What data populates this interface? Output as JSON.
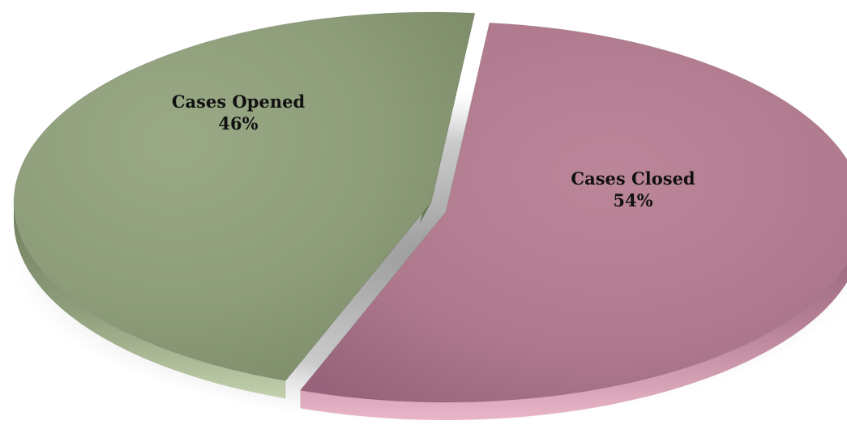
{
  "chart_data": {
    "type": "pie",
    "title": "",
    "categories": [
      "Cases Opened",
      "Cases Closed"
    ],
    "values": [
      46,
      54
    ],
    "labels": [
      {
        "name": "Cases Opened",
        "percent": "46%"
      },
      {
        "name": "Cases Closed",
        "percent": "54%"
      }
    ],
    "style": "3d-exploded",
    "legend": "none",
    "colors": [
      "#8e9e78",
      "#b57f93"
    ]
  }
}
